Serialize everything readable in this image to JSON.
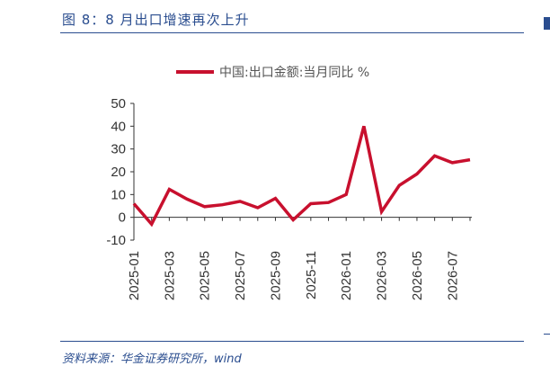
{
  "figure_title": "图 8：8 月出口增速再次上升",
  "source_note": "资料来源：华金证券研究所，wind",
  "chart_data": {
    "type": "line",
    "title": "",
    "xlabel": "",
    "ylabel": "",
    "ylim": [
      -10,
      50
    ],
    "yticks": [
      -10,
      0,
      10,
      20,
      30,
      40,
      50
    ],
    "grid": false,
    "legend_position": "top-center",
    "x": [
      "2025-01",
      "2025-02",
      "2025-03",
      "2025-04",
      "2025-05",
      "2025-06",
      "2025-07",
      "2025-08",
      "2025-09",
      "2025-10",
      "2025-11",
      "2025-12",
      "2026-01",
      "2026-02",
      "2026-03",
      "2026-04",
      "2026-05",
      "2026-06",
      "2026-07",
      "2026-08"
    ],
    "xtick_labels": [
      "2025-01",
      "2025-03",
      "2025-05",
      "2025-07",
      "2025-09",
      "2025-11",
      "2026-01",
      "2026-03",
      "2026-05",
      "2026-07"
    ],
    "series": [
      {
        "name": "中国:出口金额:当月同比 %",
        "color": "#c8102e",
        "values": [
          6,
          -3,
          12.3,
          8,
          4.7,
          5.5,
          7,
          4.2,
          8.3,
          -1.1,
          6,
          6.5,
          10,
          40,
          2.5,
          14,
          19,
          27,
          24,
          25.3
        ]
      }
    ]
  }
}
